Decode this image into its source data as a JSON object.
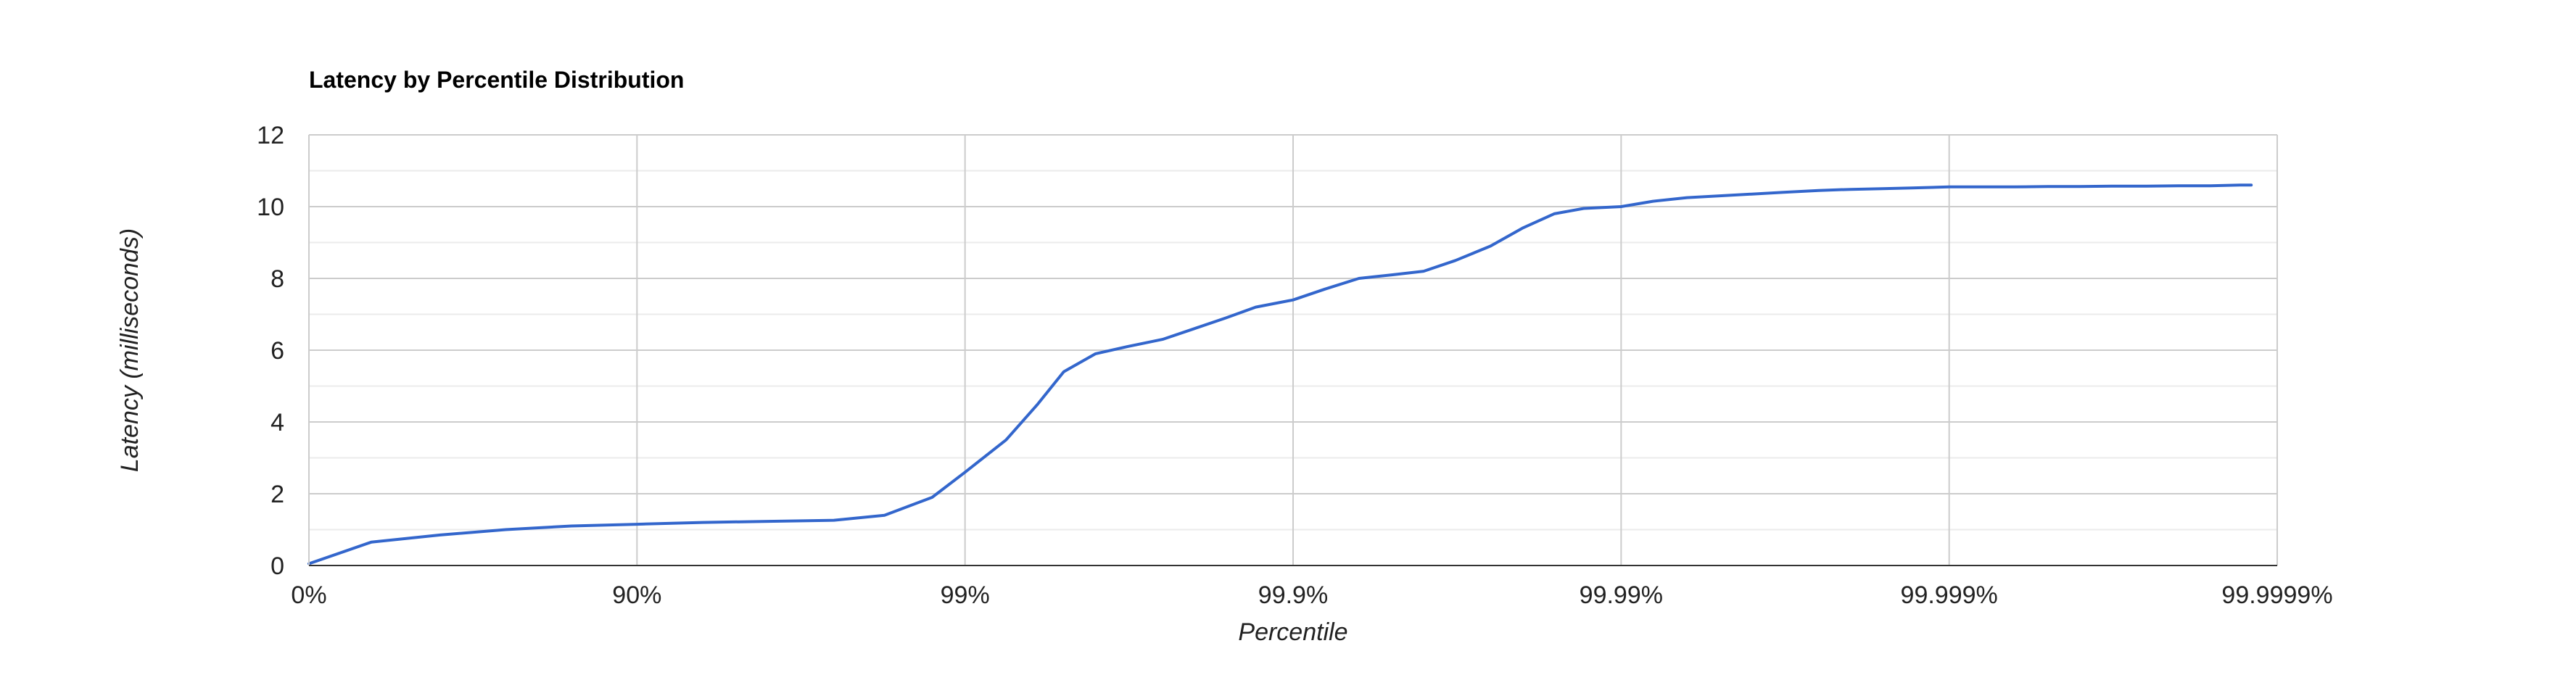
{
  "chart_data": {
    "type": "line",
    "title": "Latency by Percentile Distribution",
    "xlabel": "Percentile",
    "ylabel": "Latency (milliseconds)",
    "x_scale": "inverse-log",
    "x_ticks": [
      {
        "label": "0%",
        "value": 0
      },
      {
        "label": "90%",
        "value": 90
      },
      {
        "label": "99%",
        "value": 99
      },
      {
        "label": "99.9%",
        "value": 99.9
      },
      {
        "label": "99.99%",
        "value": 99.99
      },
      {
        "label": "99.999%",
        "value": 99.999
      },
      {
        "label": "99.9999%",
        "value": 99.9999
      }
    ],
    "ylim": [
      0,
      12
    ],
    "y_ticks": [
      0,
      2,
      4,
      6,
      8,
      10,
      12
    ],
    "grid": true,
    "legend": "none",
    "colors": {
      "line": "#3366cc",
      "grid": "#cccccc",
      "minor_grid": "#ebebeb",
      "axis": "#333333"
    },
    "series": [
      {
        "x": [
          0,
          35.43,
          60.2,
          74.88,
          84.15,
          90,
          93.69,
          96.02,
          97.49,
          98.24,
          98.74,
          99,
          99.25,
          99.4,
          99.5,
          99.6,
          99.68,
          99.75,
          99.8,
          99.84,
          99.87,
          99.9,
          99.92,
          99.937,
          99.95,
          99.96,
          99.968,
          99.975,
          99.98,
          99.984,
          99.987,
          99.99,
          99.992,
          99.9937,
          99.995,
          99.996,
          99.9968,
          99.9975,
          99.998,
          99.9984,
          99.9987,
          99.999,
          99.9992,
          99.99937,
          99.9995,
          99.9996,
          99.99968,
          99.99975,
          99.9998,
          99.99984,
          99.99987,
          99.99988
        ],
        "y": [
          0.05,
          0.65,
          0.85,
          1.0,
          1.1,
          1.15,
          1.2,
          1.23,
          1.26,
          1.4,
          1.9,
          2.6,
          3.5,
          4.5,
          5.4,
          5.9,
          6.1,
          6.3,
          6.6,
          6.9,
          7.2,
          7.4,
          7.7,
          8.0,
          8.1,
          8.2,
          8.5,
          8.9,
          9.4,
          9.8,
          9.95,
          10.0,
          10.15,
          10.25,
          10.3,
          10.35,
          10.4,
          10.45,
          10.48,
          10.5,
          10.52,
          10.55,
          10.55,
          10.55,
          10.56,
          10.56,
          10.57,
          10.57,
          10.58,
          10.58,
          10.6,
          10.6
        ]
      }
    ]
  }
}
